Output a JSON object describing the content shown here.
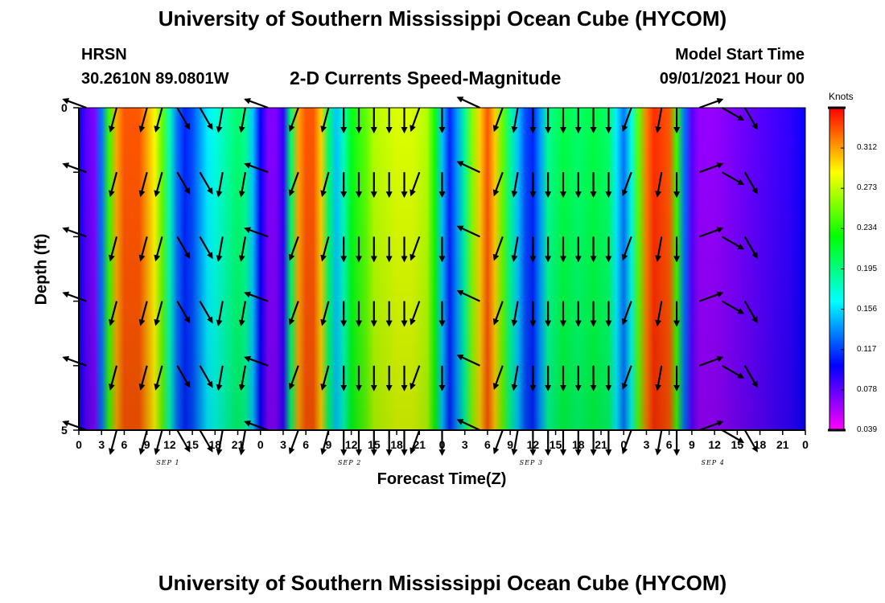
{
  "header": {
    "title": "University of Southern Mississippi Ocean Cube (HYCOM)",
    "station": "HRSN",
    "location": "30.2610N  89.0801W",
    "plot_title": "2-D Currents Speed-Magnitude",
    "model_start_label": "Model Start Time",
    "model_start_value": "09/01/2021 Hour 00"
  },
  "footer": {
    "title": "University of Southern Mississippi Ocean Cube (HYCOM)"
  },
  "chart_data": {
    "type": "heatmap",
    "title": "2-D Currents Speed-Magnitude",
    "xlabel": "Forecast Time(Z)",
    "ylabel": "Depth (ft)",
    "y_ticks": [
      "0",
      "5"
    ],
    "ylim": [
      0,
      5
    ],
    "x_tick_labels": [
      "0",
      "3",
      "6",
      "9",
      "12",
      "15",
      "18",
      "21",
      "0",
      "3",
      "6",
      "9",
      "12",
      "15",
      "18",
      "21",
      "0",
      "3",
      "6",
      "9",
      "12",
      "15",
      "18",
      "21",
      "0",
      "3",
      "6",
      "9",
      "12",
      "15",
      "18",
      "21",
      "0"
    ],
    "date_labels": [
      "SEP 1",
      "SEP 2",
      "SEP 3",
      "SEP 4"
    ],
    "colorbar": {
      "unit": "Knots",
      "ticks": [
        "0.312",
        "0.273",
        "0.234",
        "0.195",
        "0.156",
        "0.117",
        "0.078",
        "0.039"
      ],
      "range": [
        0.039,
        0.351
      ]
    },
    "speed_by_hour": [
      {
        "h": 0,
        "v": 0.1
      },
      {
        "h": 1,
        "v": 0.08
      },
      {
        "h": 2,
        "v": 0.07
      },
      {
        "h": 3,
        "v": 0.13
      },
      {
        "h": 4,
        "v": 0.24
      },
      {
        "h": 5,
        "v": 0.31
      },
      {
        "h": 6,
        "v": 0.33
      },
      {
        "h": 8,
        "v": 0.33
      },
      {
        "h": 10,
        "v": 0.29
      },
      {
        "h": 11,
        "v": 0.25
      },
      {
        "h": 12,
        "v": 0.18
      },
      {
        "h": 13,
        "v": 0.13
      },
      {
        "h": 14,
        "v": 0.11
      },
      {
        "h": 15,
        "v": 0.12
      },
      {
        "h": 16,
        "v": 0.14
      },
      {
        "h": 17,
        "v": 0.16
      },
      {
        "h": 18,
        "v": 0.17
      },
      {
        "h": 20,
        "v": 0.19
      },
      {
        "h": 21,
        "v": 0.2
      },
      {
        "h": 22,
        "v": 0.19
      },
      {
        "h": 23,
        "v": 0.15
      },
      {
        "h": 24,
        "v": 0.1
      },
      {
        "h": 25,
        "v": 0.07
      },
      {
        "h": 26,
        "v": 0.07
      },
      {
        "h": 27,
        "v": 0.09
      },
      {
        "h": 28,
        "v": 0.2
      },
      {
        "h": 29,
        "v": 0.31
      },
      {
        "h": 30,
        "v": 0.33
      },
      {
        "h": 31,
        "v": 0.33
      },
      {
        "h": 32,
        "v": 0.3
      },
      {
        "h": 33,
        "v": 0.2
      },
      {
        "h": 34,
        "v": 0.15
      },
      {
        "h": 35,
        "v": 0.18
      },
      {
        "h": 36,
        "v": 0.22
      },
      {
        "h": 38,
        "v": 0.25
      },
      {
        "h": 39,
        "v": 0.27
      },
      {
        "h": 42,
        "v": 0.28
      },
      {
        "h": 44,
        "v": 0.28
      },
      {
        "h": 46,
        "v": 0.27
      },
      {
        "h": 47,
        "v": 0.23
      },
      {
        "h": 48,
        "v": 0.15
      },
      {
        "h": 49,
        "v": 0.11
      },
      {
        "h": 50,
        "v": 0.14
      },
      {
        "h": 51,
        "v": 0.19
      },
      {
        "h": 52,
        "v": 0.26
      },
      {
        "h": 53,
        "v": 0.3
      },
      {
        "h": 54,
        "v": 0.33
      },
      {
        "h": 55,
        "v": 0.3
      },
      {
        "h": 56,
        "v": 0.25
      },
      {
        "h": 57,
        "v": 0.19
      },
      {
        "h": 58,
        "v": 0.15
      },
      {
        "h": 59,
        "v": 0.12
      },
      {
        "h": 60,
        "v": 0.11
      },
      {
        "h": 61,
        "v": 0.14
      },
      {
        "h": 62,
        "v": 0.19
      },
      {
        "h": 64,
        "v": 0.21
      },
      {
        "h": 66,
        "v": 0.2
      },
      {
        "h": 68,
        "v": 0.21
      },
      {
        "h": 70,
        "v": 0.2
      },
      {
        "h": 71,
        "v": 0.16
      },
      {
        "h": 72,
        "v": 0.13
      },
      {
        "h": 73,
        "v": 0.17
      },
      {
        "h": 74,
        "v": 0.25
      },
      {
        "h": 75,
        "v": 0.32
      },
      {
        "h": 76,
        "v": 0.34
      },
      {
        "h": 78,
        "v": 0.33
      },
      {
        "h": 79,
        "v": 0.24
      },
      {
        "h": 80,
        "v": 0.13
      },
      {
        "h": 81,
        "v": 0.08
      },
      {
        "h": 82,
        "v": 0.065
      },
      {
        "h": 84,
        "v": 0.065
      },
      {
        "h": 86,
        "v": 0.07
      },
      {
        "h": 88,
        "v": 0.075
      },
      {
        "h": 90,
        "v": 0.08
      },
      {
        "h": 92,
        "v": 0.085
      },
      {
        "h": 94,
        "v": 0.09
      },
      {
        "h": 96,
        "v": 0.1
      }
    ],
    "arrow_hours": [
      1,
      5,
      9,
      11,
      13,
      16,
      19,
      22,
      25,
      29,
      33,
      35,
      37,
      39,
      41,
      43,
      45,
      48,
      53,
      56,
      58,
      60,
      62,
      64,
      66,
      68,
      70,
      73,
      77,
      79,
      82,
      85,
      88
    ],
    "arrow_depths": [
      0,
      1,
      2,
      3,
      4,
      5
    ],
    "arrow_directions_deg": [
      290,
      195,
      195,
      195,
      150,
      150,
      190,
      190,
      290,
      200,
      195,
      180,
      180,
      180,
      180,
      180,
      200,
      180,
      295,
      200,
      190,
      180,
      180,
      180,
      180,
      180,
      180,
      200,
      190,
      180,
      70,
      120,
      150
    ]
  }
}
